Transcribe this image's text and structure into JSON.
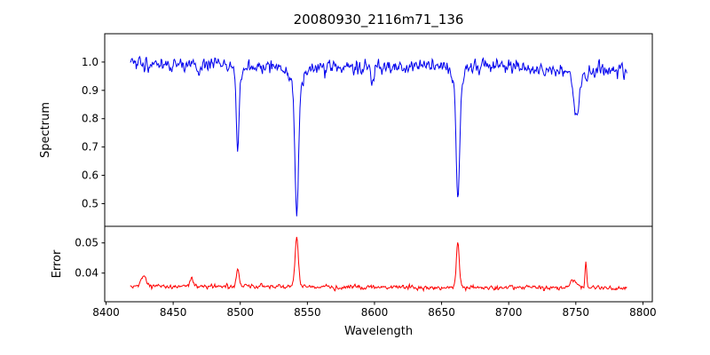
{
  "figure": {
    "background": "#ffffff",
    "axes_color": "#000000"
  },
  "chart_data": {
    "type": "line",
    "title": "20080930_2116m71_136",
    "xlabel": "Wavelength",
    "xlim": [
      8399,
      8807
    ],
    "xticks": [
      8400,
      8450,
      8500,
      8550,
      8600,
      8650,
      8700,
      8750,
      8800
    ],
    "xtick_labels": [
      "8400",
      "8450",
      "8500",
      "8550",
      "8600",
      "8650",
      "8700",
      "8750",
      "8800"
    ],
    "x_data_range": [
      8418,
      8788
    ],
    "x_step": 0.5,
    "grid": false,
    "legend": "none",
    "panels": [
      {
        "name": "spectrum",
        "ylabel": "Spectrum",
        "color": "#0000ee",
        "ylim": [
          0.42,
          1.1
        ],
        "yticks": [
          0.5,
          0.6,
          0.7,
          0.8,
          0.9,
          1.0
        ],
        "ytick_labels": [
          "0.5",
          "0.6",
          "0.7",
          "0.8",
          "0.9",
          "1.0"
        ],
        "continuum": 0.982,
        "noise_std": 0.015,
        "absorption_lines": [
          {
            "center": 8498.0,
            "depth": 0.26,
            "sigma": 0.9
          },
          {
            "center": 8498.0,
            "depth": 0.04,
            "sigma": 2.8
          },
          {
            "center": 8542.1,
            "depth": 0.42,
            "sigma": 1.3
          },
          {
            "center": 8542.1,
            "depth": 0.09,
            "sigma": 4.0
          },
          {
            "center": 8662.1,
            "depth": 0.4,
            "sigma": 1.2
          },
          {
            "center": 8662.1,
            "depth": 0.08,
            "sigma": 3.5
          },
          {
            "center": 8750.5,
            "depth": 0.16,
            "sigma": 2.3
          },
          {
            "center": 8758.0,
            "depth": 0.05,
            "sigma": 0.8
          },
          {
            "center": 8598.4,
            "depth": 0.05,
            "sigma": 1.4
          },
          {
            "center": 8468.5,
            "depth": 0.035,
            "sigma": 1.2
          }
        ]
      },
      {
        "name": "error",
        "ylabel": "Error",
        "color": "#ff0000",
        "ylim": [
          0.0305,
          0.0555
        ],
        "yticks": [
          0.04,
          0.05
        ],
        "ytick_labels": [
          "0.04",
          "0.05"
        ],
        "baseline": 0.0357,
        "baseline_slope": -1.9e-06,
        "noise_std": 0.00045,
        "spikes": [
          {
            "center": 8428.0,
            "height": 0.0035,
            "sigma": 1.6
          },
          {
            "center": 8464.0,
            "height": 0.0028,
            "sigma": 1.2
          },
          {
            "center": 8498.0,
            "height": 0.0063,
            "sigma": 1.0
          },
          {
            "center": 8542.1,
            "height": 0.0172,
            "sigma": 1.2
          },
          {
            "center": 8662.1,
            "height": 0.0147,
            "sigma": 1.1
          },
          {
            "center": 8748.0,
            "height": 0.0028,
            "sigma": 2.6
          },
          {
            "center": 8757.5,
            "height": 0.0085,
            "sigma": 0.6
          }
        ]
      }
    ]
  }
}
